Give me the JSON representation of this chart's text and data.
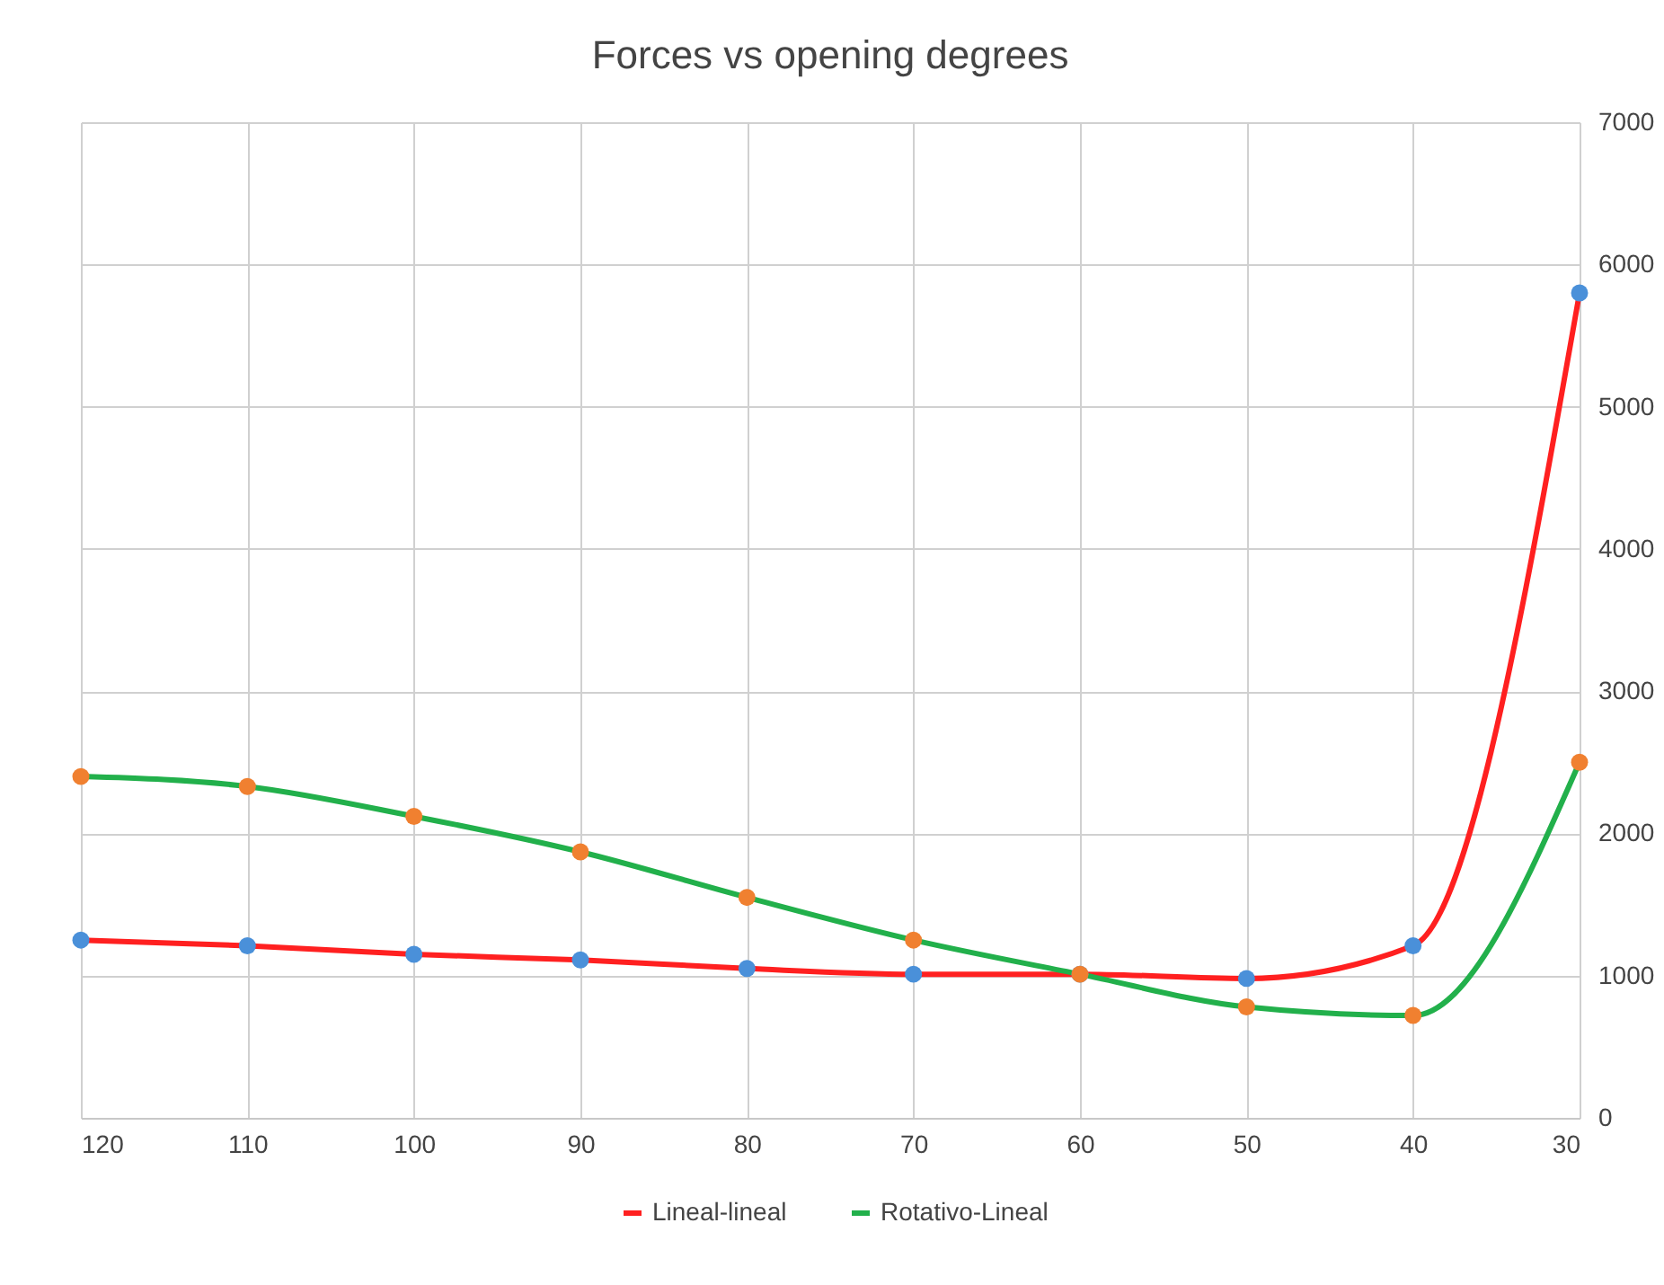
{
  "chart_data": {
    "type": "line",
    "title": "Forces vs opening degrees",
    "x": [
      120,
      110,
      100,
      90,
      80,
      70,
      60,
      50,
      40,
      30
    ],
    "xlim": [
      120,
      30
    ],
    "xticks": [
      120,
      110,
      100,
      90,
      80,
      70,
      60,
      50,
      40,
      30
    ],
    "ylim": [
      0,
      7000
    ],
    "yticks": [
      0,
      1000,
      2000,
      3000,
      4000,
      5000,
      6000,
      7000
    ],
    "series": [
      {
        "name": "Lineal-lineal",
        "color": "#ff2020",
        "colors": [
          "#4a90d9",
          "#4a90d9",
          "#4a90d9",
          "#4a90d9",
          "#4a90d9",
          "#4a90d9",
          "#4a90d9",
          "#4a90d9",
          "#4a90d9",
          "#4a90d9"
        ],
        "values": [
          1250,
          1210,
          1150,
          1110,
          1050,
          1010,
          1010,
          980,
          1210,
          5800
        ]
      },
      {
        "name": "Rotativo-Lineal",
        "color": "#22b04b",
        "colors": [
          "#f08030",
          "#f08030",
          "#f08030",
          "#f08030",
          "#f08030",
          "#f08030",
          "#f08030",
          "#f08030",
          "#f08030",
          "#f08030"
        ],
        "values": [
          2400,
          2330,
          2120,
          1870,
          1550,
          1250,
          1010,
          780,
          720,
          2500
        ]
      }
    ],
    "grid": true,
    "legend": "bottom",
    "marker": "circle",
    "line_style": "solid"
  }
}
